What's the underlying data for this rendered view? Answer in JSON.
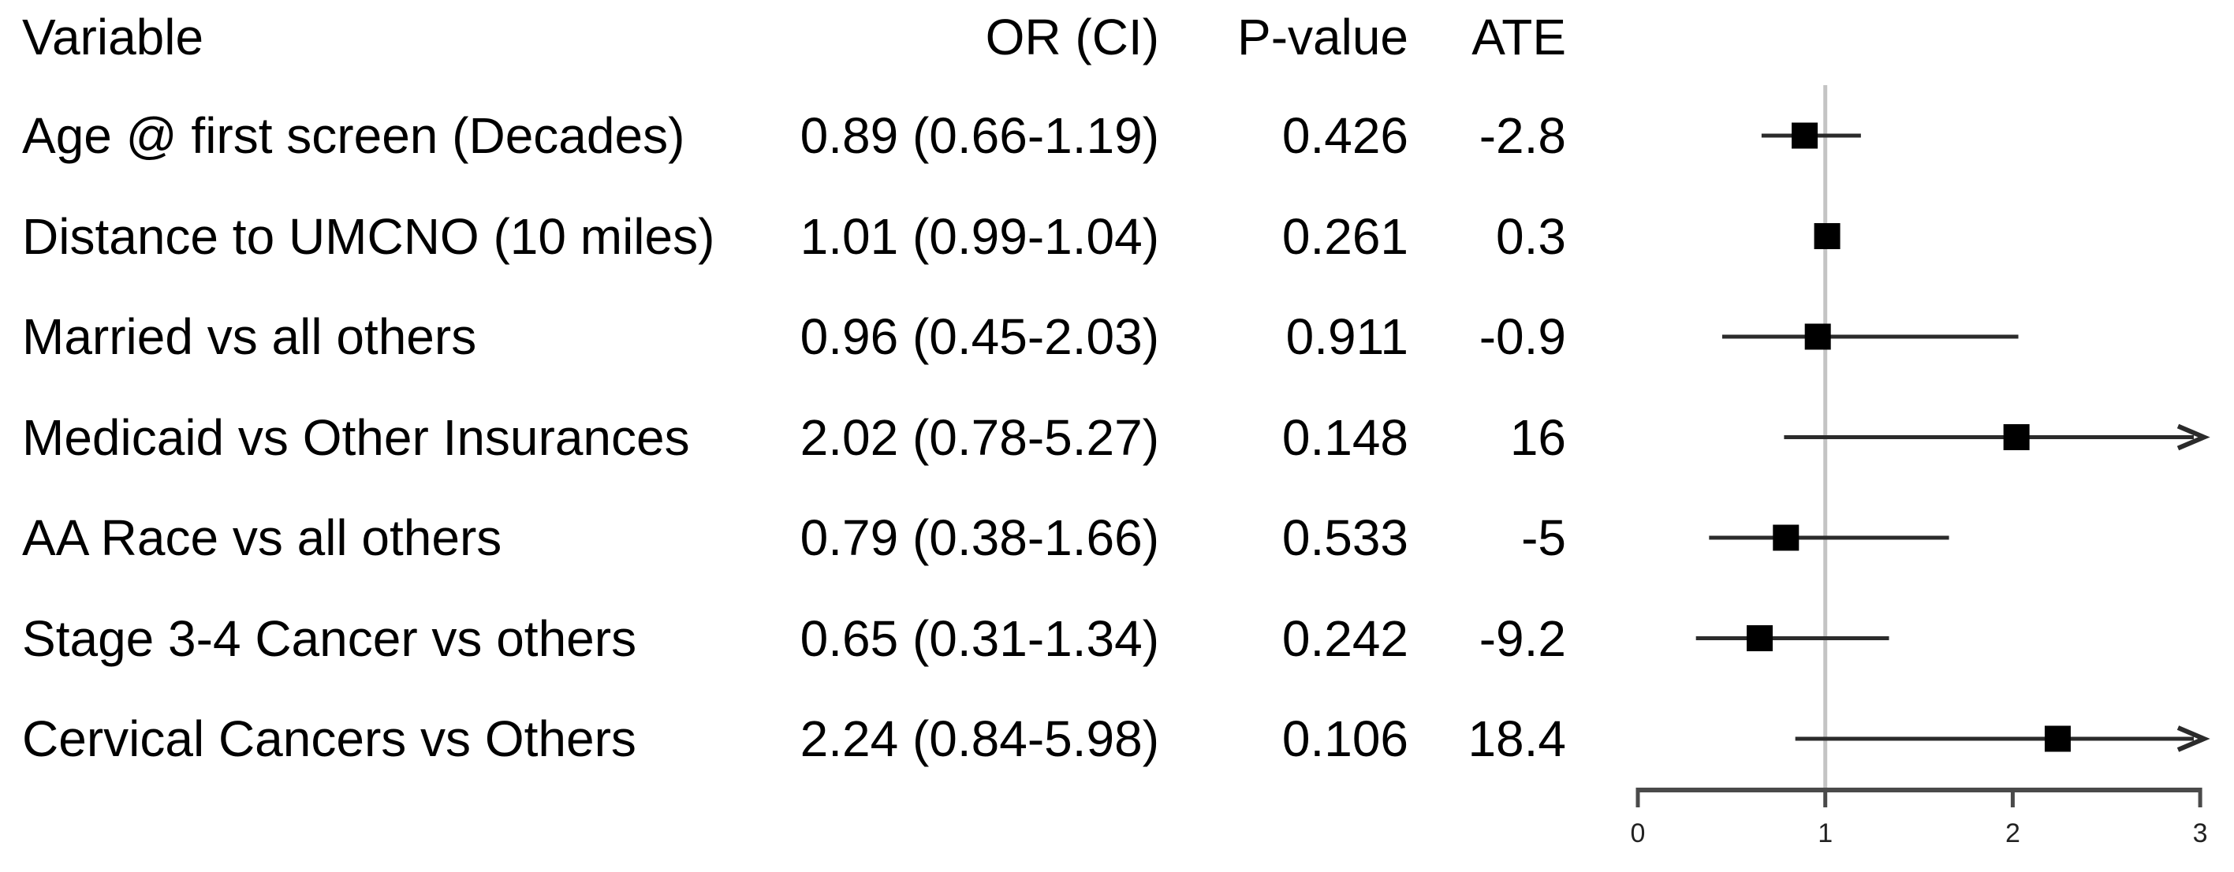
{
  "table": {
    "headers": {
      "variable": "Variable",
      "or_ci": "OR (CI)",
      "p_value": "P-value",
      "ate": "ATE"
    },
    "rows": [
      {
        "variable": "Age @ first screen (Decades)",
        "or_ci": "0.89 (0.66-1.19)",
        "p_value": "0.426",
        "ate": "-2.8"
      },
      {
        "variable": "Distance to UMCNO (10 miles)",
        "or_ci": "1.01 (0.99-1.04)",
        "p_value": "0.261",
        "ate": "0.3"
      },
      {
        "variable": "Married vs all others",
        "or_ci": "0.96 (0.45-2.03)",
        "p_value": "0.911",
        "ate": "-0.9"
      },
      {
        "variable": "Medicaid vs Other Insurances",
        "or_ci": "2.02 (0.78-5.27)",
        "p_value": "0.148",
        "ate": "16"
      },
      {
        "variable": "AA Race vs all others",
        "or_ci": "0.79 (0.38-1.66)",
        "p_value": "0.533",
        "ate": "-5"
      },
      {
        "variable": "Stage 3-4 Cancer vs others",
        "or_ci": "0.65 (0.31-1.34)",
        "p_value": "0.242",
        "ate": "-9.2"
      },
      {
        "variable": "Cervical Cancers vs Others",
        "or_ci": "2.24 (0.84-5.98)",
        "p_value": "0.106",
        "ate": "18.4"
      }
    ]
  },
  "chart_data": {
    "type": "scatter",
    "subtype": "forest-plot",
    "title": "",
    "xlabel": "",
    "ylabel": "",
    "x_axis": {
      "range": [
        0,
        3
      ],
      "ticks": [
        0,
        1,
        2,
        3
      ],
      "tick_labels": [
        "0",
        "1",
        "2",
        "3"
      ]
    },
    "reference_line_x": 1,
    "clip_max": 3,
    "series": [
      {
        "name": "Age @ first screen (Decades)",
        "or": 0.89,
        "ci_low": 0.66,
        "ci_high": 1.19,
        "p_value": 0.426,
        "ate": -2.8
      },
      {
        "name": "Distance to UMCNO (10 miles)",
        "or": 1.01,
        "ci_low": 0.99,
        "ci_high": 1.04,
        "p_value": 0.261,
        "ate": 0.3
      },
      {
        "name": "Married vs all others",
        "or": 0.96,
        "ci_low": 0.45,
        "ci_high": 2.03,
        "p_value": 0.911,
        "ate": -0.9
      },
      {
        "name": "Medicaid vs Other Insurances",
        "or": 2.02,
        "ci_low": 0.78,
        "ci_high": 5.27,
        "p_value": 0.148,
        "ate": 16
      },
      {
        "name": "AA Race vs all others",
        "or": 0.79,
        "ci_low": 0.38,
        "ci_high": 1.66,
        "p_value": 0.533,
        "ate": -5
      },
      {
        "name": "Stage 3-4 Cancer vs others",
        "or": 0.65,
        "ci_low": 0.31,
        "ci_high": 1.34,
        "p_value": 0.242,
        "ate": -9.2
      },
      {
        "name": "Cervical Cancers vs Others",
        "or": 2.24,
        "ci_low": 0.84,
        "ci_high": 5.98,
        "p_value": 0.106,
        "ate": 18.4
      }
    ],
    "marker": "black-square",
    "legend": "none",
    "grid": "off"
  },
  "colors": {
    "background": "#ffffff",
    "text": "#000000",
    "reference_line": "#c4c4c4",
    "axis": "#4a4a4a",
    "ci_line": "#2b2b2b",
    "marker": "#000000",
    "tick_label": "#222222"
  }
}
